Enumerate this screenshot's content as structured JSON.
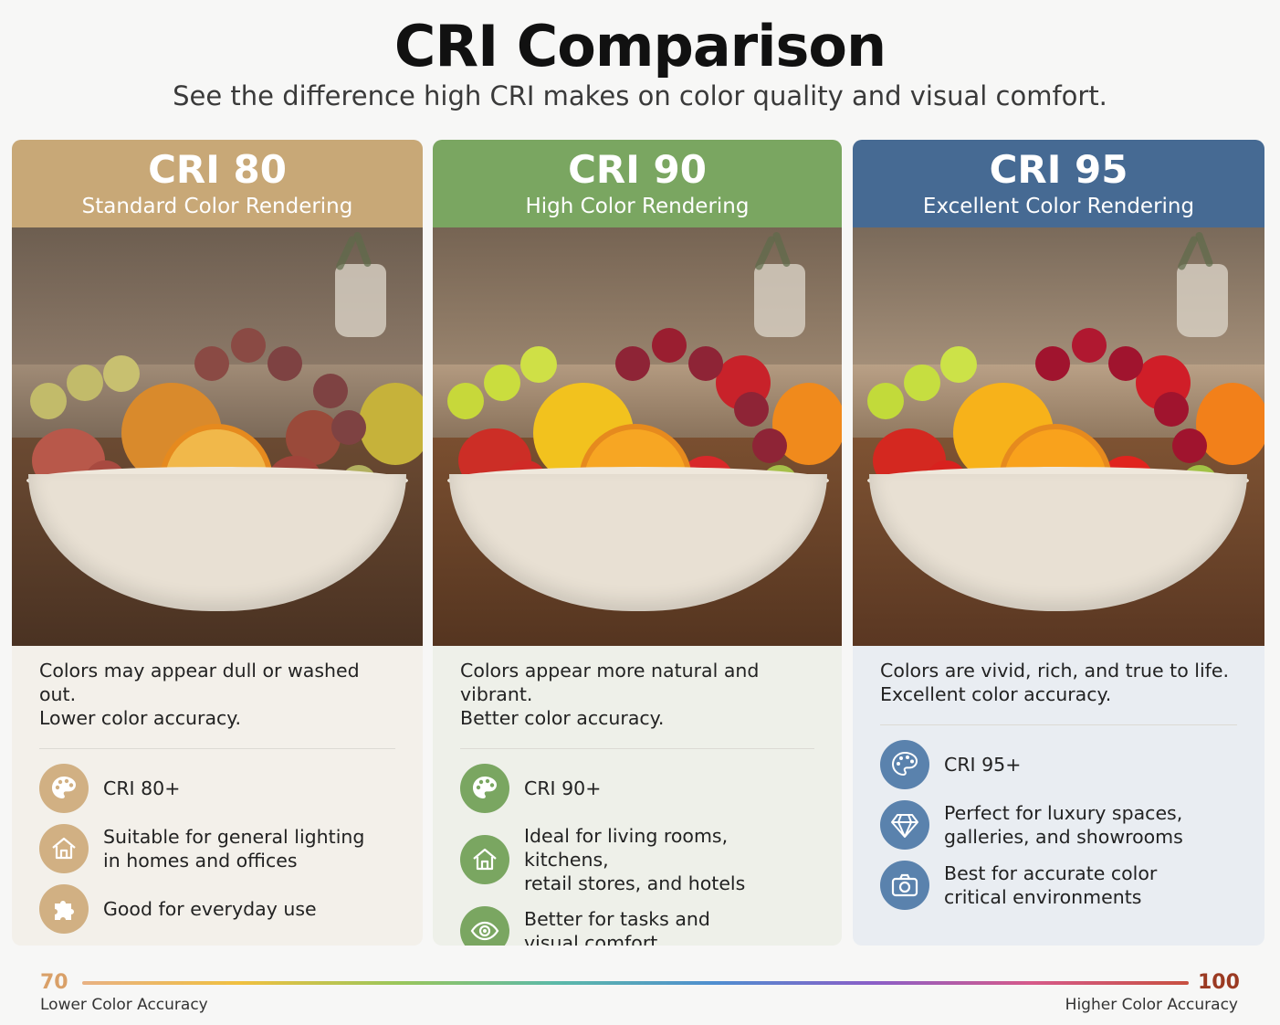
{
  "header": {
    "title": "CRI Comparison",
    "subtitle": "See the difference high CRI makes on color quality and visual comfort."
  },
  "cards": [
    {
      "cri": "CRI 80",
      "rendering": "Standard Color Rendering",
      "color": "#c8a877",
      "desc_line1": "Colors may appear dull or washed out.",
      "desc_line2": "Lower color accuracy.",
      "features": [
        {
          "icon": "palette-icon",
          "line1": "CRI 80+",
          "line2": ""
        },
        {
          "icon": "house-icon",
          "line1": "Suitable for general lighting",
          "line2": "in homes and offices"
        },
        {
          "icon": "puzzle-icon",
          "line1": "Good for everyday use",
          "line2": ""
        }
      ]
    },
    {
      "cri": "CRI 90",
      "rendering": "High Color Rendering",
      "color": "#7aa661",
      "desc_line1": "Colors appear more natural and vibrant.",
      "desc_line2": "Better color accuracy.",
      "features": [
        {
          "icon": "palette-icon",
          "line1": "CRI 90+",
          "line2": ""
        },
        {
          "icon": "house-icon",
          "line1": "Ideal for living rooms, kitchens,",
          "line2": "retail stores, and hotels"
        },
        {
          "icon": "eye-icon",
          "line1": "Better for tasks and",
          "line2": "visual comfort"
        }
      ]
    },
    {
      "cri": "CRI 95",
      "rendering": "Excellent Color Rendering",
      "color": "#466a93",
      "desc_line1": "Colors are vivid, rich, and true to life.",
      "desc_line2": "Excellent color accuracy.",
      "features": [
        {
          "icon": "palette-icon",
          "line1": "CRI 95+",
          "line2": ""
        },
        {
          "icon": "diamond-icon",
          "line1": "Perfect for luxury spaces,",
          "line2": "galleries, and showrooms"
        },
        {
          "icon": "camera-icon",
          "line1": "Best for accurate color",
          "line2": "critical environments"
        }
      ]
    }
  ],
  "scale": {
    "min": "70",
    "max": "100",
    "min_label": "Lower Color Accuracy",
    "max_label": "Higher Color Accuracy"
  }
}
